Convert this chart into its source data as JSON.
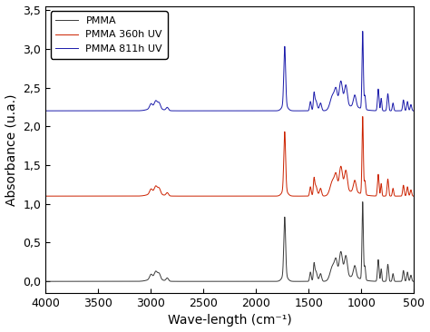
{
  "title": "",
  "xlabel": "Wave-length (cm⁻¹)",
  "ylabel": "Absorbance (u.a.)",
  "xlim": [
    4000,
    500
  ],
  "ylim": [
    -0.15,
    3.55
  ],
  "yticks": [
    0.0,
    0.5,
    1.0,
    1.5,
    2.0,
    2.5,
    3.0,
    3.5
  ],
  "ytick_labels": [
    "0,0",
    "0,5",
    "1,0",
    "1,5",
    "2,0",
    "2,5",
    "3,0",
    "3,5"
  ],
  "xticks": [
    4000,
    3500,
    3000,
    2500,
    2000,
    1500,
    1000,
    500
  ],
  "legend": [
    "PMMA",
    "PMMA 360h UV",
    "PMMA 811h UV"
  ],
  "line_colors": [
    "#3a3a3a",
    "#cc2200",
    "#1a1aaa"
  ],
  "offsets": [
    0.0,
    1.1,
    2.2
  ],
  "background_color": "#ffffff",
  "legend_loc": "upper left"
}
